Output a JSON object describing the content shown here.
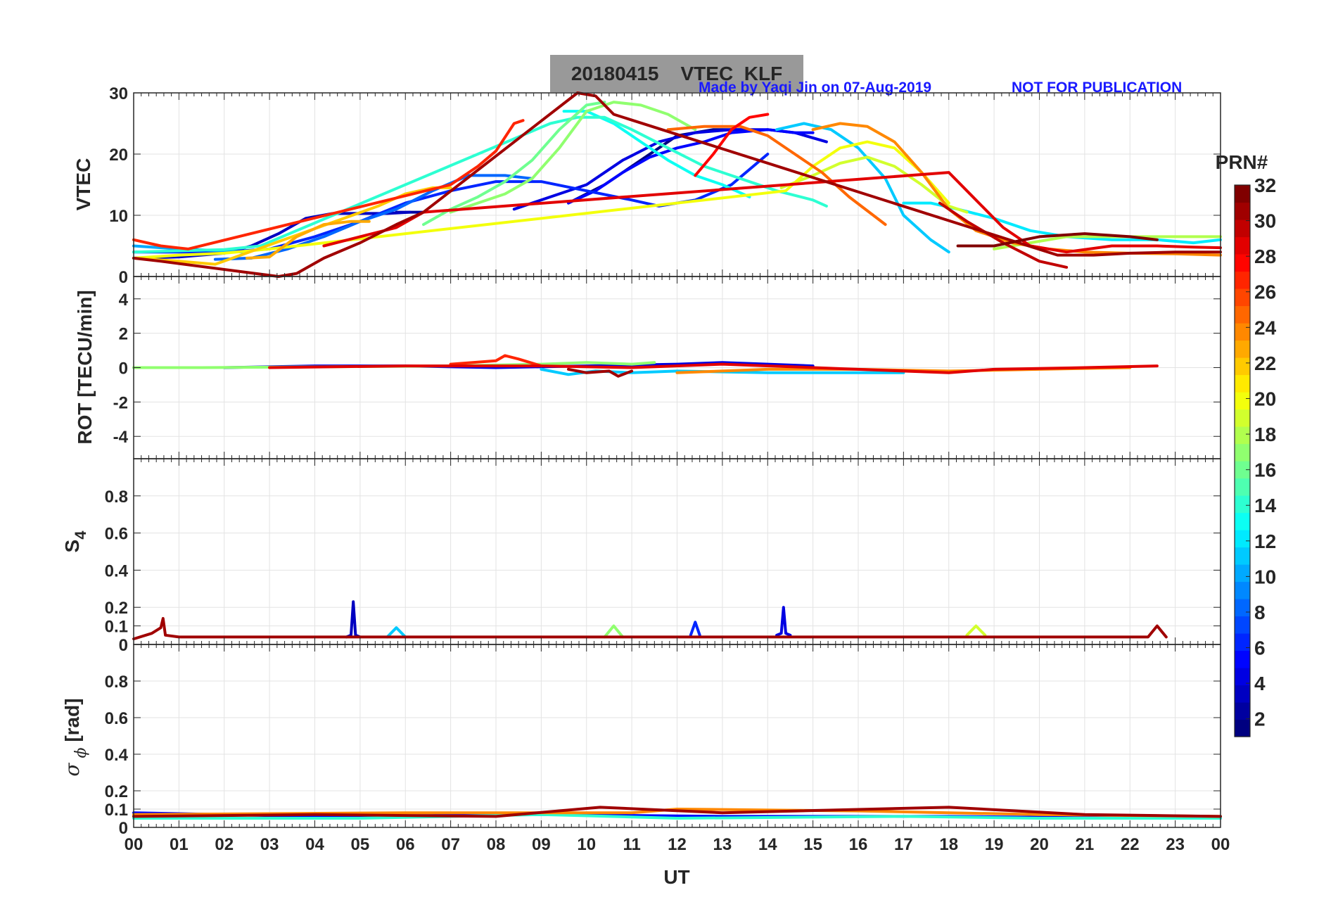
{
  "title": "20180415    VTEC  KLF",
  "credit": "Made by Yaqi Jin on 07-Aug-2019",
  "notice": "NOT FOR PUBLICATION",
  "credit_color": "#1a1aff",
  "title_bg": "#999999",
  "xlabel": "UT",
  "colorbar": {
    "label": "PRN#",
    "ticks": [
      "2",
      "4",
      "6",
      "8",
      "10",
      "12",
      "14",
      "16",
      "18",
      "20",
      "22",
      "24",
      "26",
      "28",
      "30",
      "32"
    ],
    "range": [
      1,
      32
    ],
    "colormap": "jet"
  },
  "chart_data": [
    {
      "type": "line",
      "panel": "vtec",
      "ylabel": "VTEC",
      "xlim": [
        0,
        24
      ],
      "ylim": [
        0,
        30
      ],
      "yticks": [
        "0",
        "10",
        "20",
        "30"
      ],
      "xticks": [
        "00",
        "01",
        "02",
        "03",
        "04",
        "05",
        "06",
        "07",
        "08",
        "09",
        "10",
        "11",
        "12",
        "13",
        "14",
        "15",
        "16",
        "17",
        "18",
        "19",
        "20",
        "21",
        "22",
        "23",
        "00"
      ],
      "grid": true,
      "series": [
        {
          "prn": 1,
          "x": [
            9.6,
            10.4,
            11.2,
            12.0,
            12.8,
            13.5
          ],
          "y": [
            12,
            15,
            19,
            23,
            24,
            24
          ]
        },
        {
          "prn": 2,
          "x": [
            5.8,
            6.4
          ],
          "y": [
            10.5,
            10.5
          ]
        },
        {
          "prn": 3,
          "x": [
            0.0,
            1.0,
            2.0,
            2.6,
            3.2,
            3.8,
            4.4,
            5.0,
            5.6,
            6.1
          ],
          "y": [
            3,
            3.2,
            3.8,
            5,
            7,
            9.5,
            10.3,
            10.3,
            10.3,
            10.5
          ]
        },
        {
          "prn": 4,
          "x": [
            8.4,
            9.2,
            10.0,
            10.8,
            11.6,
            12.4,
            13.2,
            14.0,
            14.6,
            15.3
          ],
          "y": [
            11,
            13,
            15,
            19,
            22,
            23.5,
            24,
            24,
            23.5,
            22
          ]
        },
        {
          "prn": 5,
          "x": [
            9.6,
            10.2,
            10.8,
            11.4,
            12.0,
            12.6,
            13.2,
            14.0,
            14.6,
            15.0
          ],
          "y": [
            12,
            14,
            17,
            19.5,
            21,
            22,
            23.5,
            24,
            23.5,
            23.5
          ]
        },
        {
          "prn": 6,
          "x": [
            0.0,
            1.0,
            2.0,
            3.0,
            4.0,
            5.0,
            6.0,
            7.0,
            8.0,
            9.0,
            10.0,
            11.0,
            11.6,
            12.4,
            13.2,
            14.0
          ],
          "y": [
            4,
            4,
            4,
            4.5,
            6.5,
            9,
            12,
            14,
            15.5,
            15.5,
            14,
            12.5,
            11.5,
            12.5,
            15,
            20
          ]
        },
        {
          "prn": 8,
          "x": [
            1.8,
            2.6,
            3.4,
            4.2,
            5.0,
            5.8,
            6.6,
            7.4,
            8.2,
            8.8
          ],
          "y": [
            2.8,
            3,
            4.5,
            6.5,
            9,
            11,
            14,
            16.5,
            16.5,
            16
          ]
        },
        {
          "prn": 10,
          "x": [
            0.0,
            1.0,
            2.0,
            2.4
          ],
          "y": [
            5,
            4.5,
            4.2,
            4
          ]
        },
        {
          "prn": 11,
          "x": [
            14.2,
            14.8,
            15.4,
            16.0,
            16.6,
            17.0,
            17.6,
            18.0
          ],
          "y": [
            24,
            25,
            24,
            21,
            16,
            10,
            6,
            4
          ]
        },
        {
          "prn": 12,
          "x": [
            17.0,
            17.6,
            18.2,
            19.0,
            19.8,
            20.6,
            21.6,
            22.6,
            23.4,
            24.0
          ],
          "y": [
            12,
            12,
            11,
            9.5,
            7.5,
            6.5,
            6,
            6,
            5.5,
            6
          ]
        },
        {
          "prn": 13,
          "x": [
            9.5,
            10.0,
            10.6,
            11.2,
            11.8,
            12.4,
            13.0,
            13.6
          ],
          "y": [
            27,
            27,
            25,
            22,
            19,
            16.5,
            15,
            13
          ]
        },
        {
          "prn": 14,
          "x": [
            0.0,
            1.0,
            2.0,
            2.8,
            9.2,
            9.8,
            10.4,
            11.0,
            11.8,
            12.6,
            13.4,
            14.2,
            15.0,
            15.3
          ],
          "y": [
            4,
            4.2,
            4.4,
            5,
            25,
            26,
            26,
            24,
            21,
            18,
            16,
            14,
            12.5,
            11.5
          ]
        },
        {
          "prn": 16,
          "x": [
            6.4,
            7.0,
            7.6,
            8.2,
            8.8,
            9.4,
            10.0,
            10.4
          ],
          "y": [
            8.5,
            11,
            13,
            15.5,
            19,
            24,
            28,
            28.5
          ]
        },
        {
          "prn": 17,
          "x": [
            7.0,
            7.6,
            8.2,
            8.8,
            9.4,
            10.0,
            10.6,
            11.2,
            11.8,
            12.4
          ],
          "y": [
            10.5,
            12,
            13.5,
            16,
            21,
            27,
            28.5,
            28,
            26.5,
            24
          ]
        },
        {
          "prn": 18,
          "x": [
            19.0,
            19.8,
            20.6,
            21.4,
            22.2,
            23.0,
            24.0
          ],
          "y": [
            4.5,
            5.5,
            6.5,
            6.5,
            6.5,
            6.5,
            6.5
          ]
        },
        {
          "prn": 19,
          "x": [
            14.3,
            15.0,
            15.6,
            16.2,
            16.8,
            17.4,
            18.0,
            18.4
          ],
          "y": [
            14.5,
            16.5,
            18.5,
            19.5,
            18,
            15,
            11.5,
            10.5
          ]
        },
        {
          "prn": 20,
          "x": [
            0.0,
            1.0,
            2.0,
            3.0,
            14.4,
            15.0,
            15.6,
            16.2,
            16.8,
            17.4,
            18.0
          ],
          "y": [
            3,
            3.5,
            3.8,
            4.5,
            14,
            18,
            21,
            22,
            21,
            17,
            12
          ]
        },
        {
          "prn": 22,
          "x": [
            0.0,
            1.0,
            1.8,
            5.4,
            6.0,
            6.6,
            7.0
          ],
          "y": [
            3,
            2.5,
            2,
            11.5,
            13.5,
            14.5,
            14.5
          ]
        },
        {
          "prn": 23,
          "x": [
            2.5,
            3.0,
            3.6,
            4.2,
            4.8,
            5.2
          ],
          "y": [
            3,
            3.2,
            6.5,
            8.5,
            9,
            9
          ]
        },
        {
          "prn": 24,
          "x": [
            15.0,
            15.6,
            16.2,
            16.8,
            17.4,
            18.0,
            18.6,
            19.4,
            20.2,
            21.0,
            22.0,
            23.0,
            24.0
          ],
          "y": [
            24,
            25,
            24.5,
            22,
            17,
            11,
            7.5,
            5.5,
            4.5,
            4,
            3.8,
            3.7,
            3.5
          ]
        },
        {
          "prn": 25,
          "x": [
            11.8,
            12.6,
            13.4,
            14.0,
            14.6,
            15.2,
            15.8,
            16.6
          ],
          "y": [
            24,
            24.5,
            24.5,
            23,
            20,
            17,
            13,
            8.5
          ]
        },
        {
          "prn": 27,
          "x": [
            0.0,
            0.6,
            1.2,
            7.0,
            7.6,
            8.0,
            8.4,
            8.6
          ],
          "y": [
            6,
            5,
            4.5,
            15,
            18,
            20.5,
            25,
            25.5
          ]
        },
        {
          "prn": 28,
          "x": [
            12.4,
            12.8,
            13.2,
            13.6,
            14.0
          ],
          "y": [
            16.5,
            20,
            24,
            26,
            26.5
          ]
        },
        {
          "prn": 29,
          "x": [
            4.2,
            5.0,
            5.8,
            6.4,
            18.0,
            18.6,
            19.2,
            19.8,
            20.6,
            21.6,
            22.6,
            23.4,
            24.0
          ],
          "y": [
            5,
            6.5,
            8,
            10.5,
            17,
            12.5,
            8,
            5,
            4,
            5,
            5,
            4.8,
            4.7
          ]
        },
        {
          "prn": 30,
          "x": [
            17.8,
            18.4,
            19.2,
            20.0,
            20.6
          ],
          "y": [
            12,
            9,
            5.5,
            2.5,
            1.5
          ]
        },
        {
          "prn": 31,
          "x": [
            0.0,
            0.6,
            3.2,
            3.6,
            4.2,
            5.0,
            5.8,
            6.4,
            9.8,
            10.2,
            10.6,
            20.4,
            21.2,
            22.0,
            23.0,
            24.0
          ],
          "y": [
            3,
            2.5,
            0,
            0.5,
            3,
            5.5,
            8.5,
            10.5,
            30,
            29.5,
            26.5,
            3.5,
            3.5,
            3.8,
            4,
            4
          ]
        },
        {
          "prn": 32,
          "x": [
            18.2,
            19.0,
            20.0,
            21.0,
            22.0,
            22.6
          ],
          "y": [
            5,
            5,
            6.5,
            7,
            6.5,
            6
          ]
        }
      ]
    },
    {
      "type": "line",
      "panel": "rot",
      "ylabel": "ROT [TECU/min]",
      "xlim": [
        0,
        24
      ],
      "ylim": [
        -5.3,
        5.3
      ],
      "yticks": [
        "-4",
        "-2",
        "0",
        "2",
        "4"
      ],
      "grid": true,
      "series": [
        {
          "prn": 4,
          "x": [
            2.0,
            4.0,
            6.0,
            8.0,
            10.0,
            12.0,
            13.0,
            14.0,
            15.0
          ],
          "y": [
            0,
            0.1,
            0.1,
            0,
            0.1,
            0.2,
            0.3,
            0.2,
            0.1
          ]
        },
        {
          "prn": 11,
          "x": [
            9.0,
            9.6,
            10.2,
            11.0,
            12.0,
            14.0,
            16.0,
            17.0
          ],
          "y": [
            -0.1,
            -0.4,
            -0.2,
            -0.3,
            -0.2,
            -0.3,
            -0.3,
            -0.3
          ]
        },
        {
          "prn": 17,
          "x": [
            0.0,
            1.5,
            7.0,
            9.0,
            10.0,
            11.0,
            11.5
          ],
          "y": [
            0,
            0,
            0.1,
            0.2,
            0.3,
            0.2,
            0.3
          ]
        },
        {
          "prn": 24,
          "x": [
            12.0,
            14.0,
            16.0,
            18.0,
            20.0,
            22.0
          ],
          "y": [
            -0.3,
            -0.1,
            -0.1,
            -0.2,
            -0.1,
            0
          ]
        },
        {
          "prn": 27,
          "x": [
            7.0,
            8.0,
            8.2,
            8.5,
            9.0
          ],
          "y": [
            0.2,
            0.4,
            0.7,
            0.5,
            0.1
          ]
        },
        {
          "prn": 29,
          "x": [
            3.0,
            6.0,
            9.0,
            11.0,
            13.0,
            18.0,
            19.0,
            21.0,
            22.6
          ],
          "y": [
            0,
            0.1,
            0.1,
            0,
            0.2,
            -0.3,
            -0.1,
            0,
            0.1
          ]
        },
        {
          "prn": 31,
          "x": [
            9.6,
            10.0,
            10.5,
            10.7,
            11.0
          ],
          "y": [
            -0.1,
            -0.3,
            -0.2,
            -0.5,
            -0.2
          ]
        }
      ]
    },
    {
      "type": "line",
      "panel": "s4",
      "ylabel": "S4",
      "xlim": [
        0,
        24
      ],
      "ylim": [
        0,
        1
      ],
      "yticks": [
        "0",
        "0.1",
        "0.2",
        "0.4",
        "0.6",
        "0.8"
      ],
      "grid": true,
      "series": [
        {
          "prn": 3,
          "x": [
            4.7,
            4.8,
            4.85,
            4.9,
            5.0
          ],
          "y": [
            0.04,
            0.05,
            0.23,
            0.05,
            0.04
          ]
        },
        {
          "prn": 4,
          "x": [
            14.2,
            14.3,
            14.35,
            14.4,
            14.5
          ],
          "y": [
            0.05,
            0.06,
            0.2,
            0.06,
            0.05
          ]
        },
        {
          "prn": 6,
          "x": [
            12.3,
            12.4,
            12.5
          ],
          "y": [
            0.05,
            0.12,
            0.05
          ]
        },
        {
          "prn": 11,
          "x": [
            5.6,
            5.8,
            6.0
          ],
          "y": [
            0.04,
            0.09,
            0.04
          ]
        },
        {
          "prn": 17,
          "x": [
            10.4,
            10.6,
            10.8
          ],
          "y": [
            0.04,
            0.1,
            0.04
          ]
        },
        {
          "prn": 19,
          "x": [
            18.4,
            18.6,
            18.8
          ],
          "y": [
            0.05,
            0.1,
            0.05
          ]
        },
        {
          "prn": 31,
          "x": [
            0.0,
            0.4,
            0.6,
            0.65,
            0.7,
            1.0,
            22.4,
            22.6,
            22.8
          ],
          "y": [
            0.03,
            0.06,
            0.09,
            0.14,
            0.05,
            0.04,
            0.04,
            0.1,
            0.04
          ]
        }
      ]
    },
    {
      "type": "line",
      "panel": "sigma_phi",
      "ylabel": "σ ϕ [rad]",
      "xlim": [
        0,
        24
      ],
      "ylim": [
        0,
        1
      ],
      "yticks": [
        "0",
        "0.1",
        "0.2",
        "0.4",
        "0.6",
        "0.8"
      ],
      "grid": true,
      "series": [
        {
          "prn": 5,
          "x": [
            0.0,
            4.0,
            9.0,
            13.0,
            18.0,
            22.0,
            24.0
          ],
          "y": [
            0.08,
            0.06,
            0.07,
            0.06,
            0.06,
            0.05,
            0.05
          ]
        },
        {
          "prn": 14,
          "x": [
            0.0,
            5.0,
            9.0,
            12.0,
            17.0,
            20.0,
            24.0
          ],
          "y": [
            0.05,
            0.05,
            0.07,
            0.05,
            0.06,
            0.05,
            0.05
          ]
        },
        {
          "prn": 24,
          "x": [
            0.0,
            6.0,
            11.0,
            12.0,
            16.0,
            20.0,
            24.0
          ],
          "y": [
            0.07,
            0.08,
            0.08,
            0.1,
            0.09,
            0.07,
            0.06
          ]
        },
        {
          "prn": 31,
          "x": [
            0.0,
            4.0,
            8.0,
            10.3,
            13.0,
            18.0,
            21.0,
            24.0
          ],
          "y": [
            0.06,
            0.07,
            0.06,
            0.11,
            0.08,
            0.11,
            0.07,
            0.06
          ]
        }
      ]
    }
  ]
}
